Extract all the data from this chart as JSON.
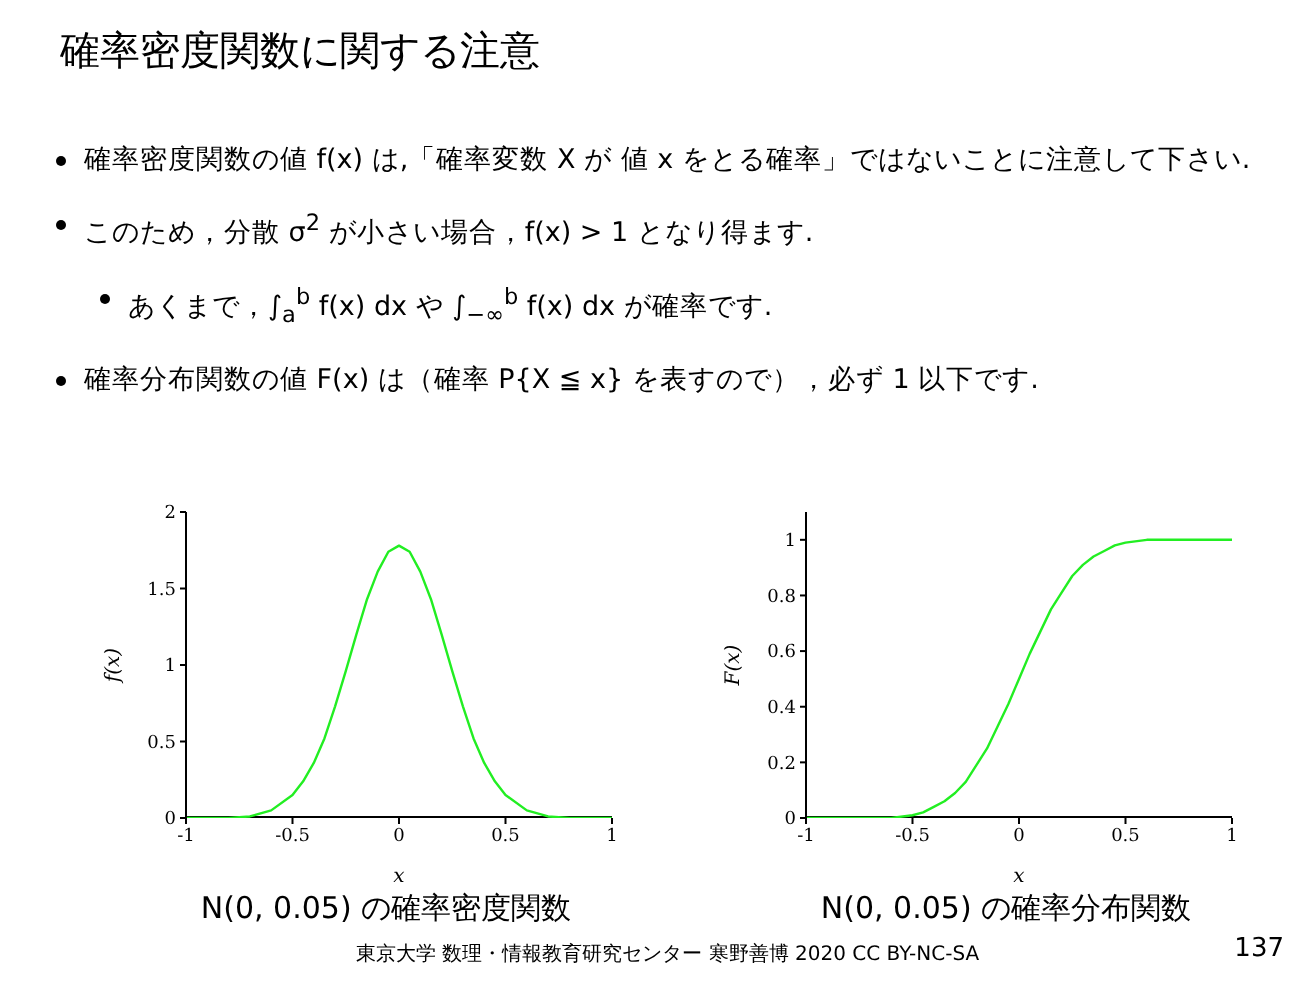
{
  "chart_data": [
    {
      "type": "line",
      "title": "確率密度関数に関する注意",
      "subtitle": "N(0, 0.05) の確率密度関数",
      "xlabel": "x",
      "ylabel": "f(x)",
      "annotations": [
        "確率密度関数の値 f(x) は,「確率変数 X が 値 x をとる確率」ではないことに注意して下さい.",
        "このため，分散 σ$^{2}$ が小さい場合，f(x) > 1 となり得ます.",
        "あくまで，∫$_{a}$$^{b}$ f(x) dx や ∫$_{−∞}$$^{b}$ f(x) dx が確率です.",
        "確率分布関数の値 F(x) は（確率 P{X ≦ x} を表すので），必ず 1 以下です."
      ],
      "x": [
        -1,
        -0.9,
        -0.8,
        -0.7,
        -0.6,
        -0.5,
        -0.45,
        -0.4,
        -0.35,
        -0.3,
        -0.25,
        -0.2,
        -0.15,
        -0.1,
        -0.05,
        0,
        0.05,
        0.1,
        0.15,
        0.2,
        0.25,
        0.3,
        0.35,
        0.4,
        0.45,
        0.5,
        0.6,
        0.7,
        0.8,
        0.9,
        1
      ],
      "series": [
        {
          "color": "#22ee22",
          "values": [
            0,
            0,
            0,
            0.01,
            0.05,
            0.15,
            0.24,
            0.36,
            0.52,
            0.73,
            0.96,
            1.2,
            1.43,
            1.61,
            1.74,
            1.78,
            1.74,
            1.61,
            1.43,
            1.2,
            0.96,
            0.73,
            0.52,
            0.36,
            0.24,
            0.15,
            0.05,
            0.01,
            0,
            0,
            0
          ]
        }
      ],
      "xlim": [
        -1,
        1
      ],
      "xticks": [
        -1,
        -0.5,
        0,
        0.5,
        1
      ],
      "ylim": [
        0,
        2
      ],
      "yticks": [
        0,
        0.5,
        1,
        1.5,
        2
      ]
    },
    {
      "type": "line",
      "subtitle": "N(0, 0.05) の確率分布関数",
      "xlabel": "x",
      "ylabel": "F(x)",
      "annotations": [
        "東京大学 数理・情報教育研究センター 寒野善博 2020 CC BY-NC-SA",
        "137"
      ],
      "x": [
        -1,
        -0.9,
        -0.8,
        -0.7,
        -0.6,
        -0.5,
        -0.45,
        -0.4,
        -0.35,
        -0.3,
        -0.25,
        -0.2,
        -0.15,
        -0.1,
        -0.05,
        0,
        0.05,
        0.1,
        0.15,
        0.2,
        0.25,
        0.3,
        0.35,
        0.4,
        0.45,
        0.5,
        0.6,
        0.7,
        0.8,
        0.9,
        1
      ],
      "series": [
        {
          "color": "#22ee22",
          "values": [
            0,
            0,
            0,
            0,
            0,
            0.01,
            0.02,
            0.04,
            0.06,
            0.09,
            0.13,
            0.19,
            0.25,
            0.33,
            0.41,
            0.5,
            0.59,
            0.67,
            0.75,
            0.81,
            0.87,
            0.91,
            0.94,
            0.96,
            0.98,
            0.99,
            1,
            1,
            1,
            1,
            1
          ]
        }
      ],
      "xlim": [
        -1,
        1
      ],
      "xticks": [
        -1,
        -0.5,
        0,
        0.5,
        1
      ],
      "ylim": [
        0,
        1.1
      ],
      "yticks": [
        0,
        0.2,
        0.4,
        0.6,
        0.8,
        1
      ]
    }
  ]
}
